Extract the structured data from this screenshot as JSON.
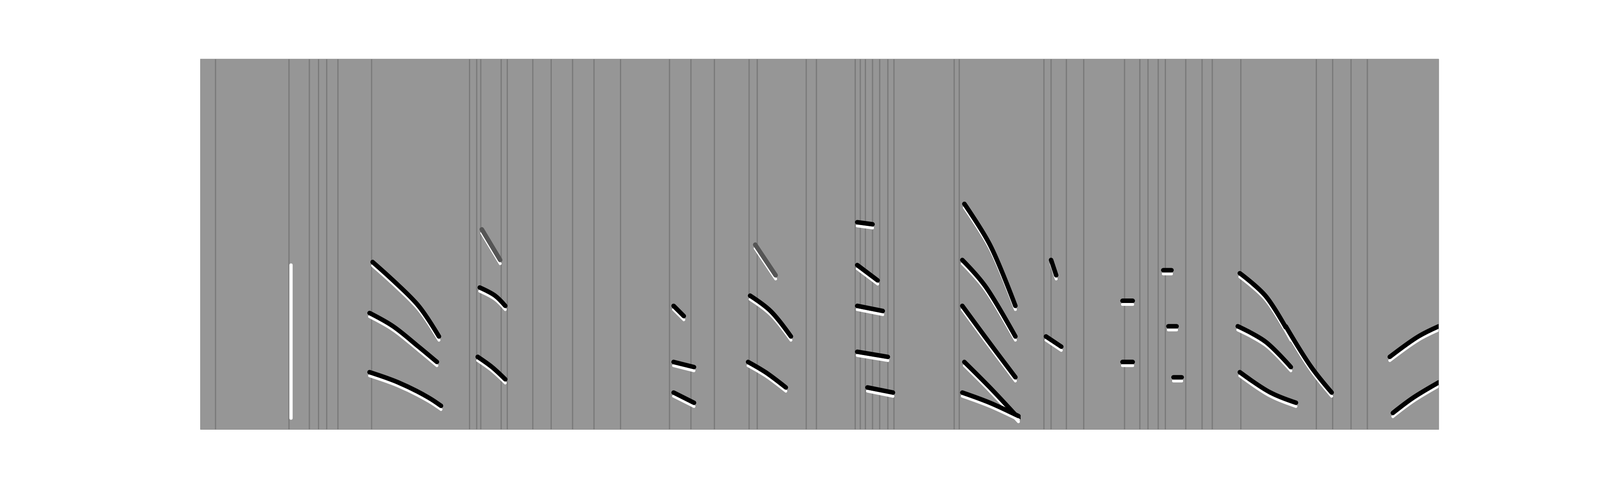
{
  "chart_data": {
    "type": "line",
    "tick_labels": false,
    "xlim": [
      0,
      1214
    ],
    "ylim": [
      0,
      363
    ],
    "vlines": [
      15,
      87,
      107,
      116,
      124,
      135,
      168,
      264,
      271,
      275,
      295,
      301,
      326,
      344,
      365,
      386,
      412,
      460,
      481,
      504,
      538,
      546,
      594,
      604,
      642,
      647,
      652,
      659,
      666,
      674,
      680,
      739,
      744,
      827,
      834,
      849,
      866,
      906,
      921,
      929,
      939,
      946,
      966,
      982,
      992,
      1020,
      1094,
      1110,
      1128,
      1144
    ],
    "series": [
      {
        "color": "#ffffff",
        "x": [
          89,
          89
        ],
        "values": [
          161,
          11
        ]
      },
      {
        "color": "#000000",
        "x": [
          169,
          189,
          214,
          234
        ],
        "values": [
          164,
          146,
          121,
          91
        ]
      },
      {
        "color": "#000000",
        "x": [
          166,
          189,
          214,
          232
        ],
        "values": [
          114,
          101,
          81,
          66
        ]
      },
      {
        "color": "#000000",
        "x": [
          166,
          194,
          224,
          236
        ],
        "values": [
          56,
          46,
          31,
          23
        ]
      },
      {
        "color": "#000000",
        "x": [
          274,
          289,
          299
        ],
        "values": [
          139,
          131,
          121
        ]
      },
      {
        "color": "#000000",
        "x": [
          272,
          286,
          299
        ],
        "values": [
          71,
          61,
          49
        ]
      },
      {
        "color": "#555555",
        "x": [
          276,
          294
        ],
        "values": [
          196,
          166
        ]
      },
      {
        "color": "#000000",
        "x": [
          464,
          474
        ],
        "values": [
          121,
          111
        ]
      },
      {
        "color": "#000000",
        "x": [
          464,
          484
        ],
        "values": [
          66,
          61
        ]
      },
      {
        "color": "#000000",
        "x": [
          464,
          484
        ],
        "values": [
          36,
          26
        ]
      },
      {
        "color": "#000000",
        "x": [
          539,
          559,
          579
        ],
        "values": [
          131,
          116,
          91
        ]
      },
      {
        "color": "#000000",
        "x": [
          537,
          554,
          574
        ],
        "values": [
          66,
          56,
          41
        ]
      },
      {
        "color": "#555555",
        "x": [
          544,
          564
        ],
        "values": [
          181,
          151
        ]
      },
      {
        "color": "#000000",
        "x": [
          644,
          659
        ],
        "values": [
          203,
          201
        ]
      },
      {
        "color": "#000000",
        "x": [
          644,
          664
        ],
        "values": [
          161,
          146
        ]
      },
      {
        "color": "#000000",
        "x": [
          644,
          669
        ],
        "values": [
          121,
          116
        ]
      },
      {
        "color": "#000000",
        "x": [
          644,
          674
        ],
        "values": [
          76,
          71
        ]
      },
      {
        "color": "#000000",
        "x": [
          654,
          679
        ],
        "values": [
          41,
          36
        ]
      },
      {
        "color": "#000000",
        "x": [
          749,
          774,
          799
        ],
        "values": [
          221,
          181,
          121
        ]
      },
      {
        "color": "#000000",
        "x": [
          747,
          769,
          799
        ],
        "values": [
          166,
          141,
          91
        ]
      },
      {
        "color": "#000000",
        "x": [
          747,
          769,
          799
        ],
        "values": [
          121,
          91,
          51
        ]
      },
      {
        "color": "#000000",
        "x": [
          749,
          774,
          802
        ],
        "values": [
          66,
          41,
          11
        ]
      },
      {
        "color": "#000000",
        "x": [
          747,
          774,
          802
        ],
        "values": [
          36,
          26,
          13
        ]
      },
      {
        "color": "#000000",
        "x": [
          834,
          839
        ],
        "values": [
          166,
          151
        ]
      },
      {
        "color": "#000000",
        "x": [
          829,
          844
        ],
        "values": [
          91,
          81
        ]
      },
      {
        "color": "#000000",
        "x": [
          904,
          914
        ],
        "values": [
          126,
          126
        ]
      },
      {
        "color": "#000000",
        "x": [
          904,
          914
        ],
        "values": [
          66,
          66
        ]
      },
      {
        "color": "#000000",
        "x": [
          944,
          952
        ],
        "values": [
          156,
          156
        ]
      },
      {
        "color": "#000000",
        "x": [
          949,
          957
        ],
        "values": [
          101,
          101
        ]
      },
      {
        "color": "#000000",
        "x": [
          954,
          962
        ],
        "values": [
          51,
          51
        ]
      },
      {
        "color": "#000000",
        "x": [
          1019,
          1044,
          1069
        ],
        "values": [
          153,
          131,
          91
        ]
      },
      {
        "color": "#000000",
        "x": [
          1017,
          1044,
          1069
        ],
        "values": [
          101,
          86,
          61
        ]
      },
      {
        "color": "#000000",
        "x": [
          1019,
          1049,
          1074
        ],
        "values": [
          56,
          36,
          26
        ]
      },
      {
        "color": "#000000",
        "x": [
          1064,
          1089,
          1109
        ],
        "values": [
          101,
          61,
          36
        ]
      },
      {
        "color": "#000000",
        "x": [
          1169,
          1189,
          1214
        ],
        "values": [
          16,
          31,
          46
        ]
      },
      {
        "color": "#000000",
        "x": [
          1166,
          1194,
          1214
        ],
        "values": [
          71,
          91,
          101
        ]
      }
    ]
  }
}
